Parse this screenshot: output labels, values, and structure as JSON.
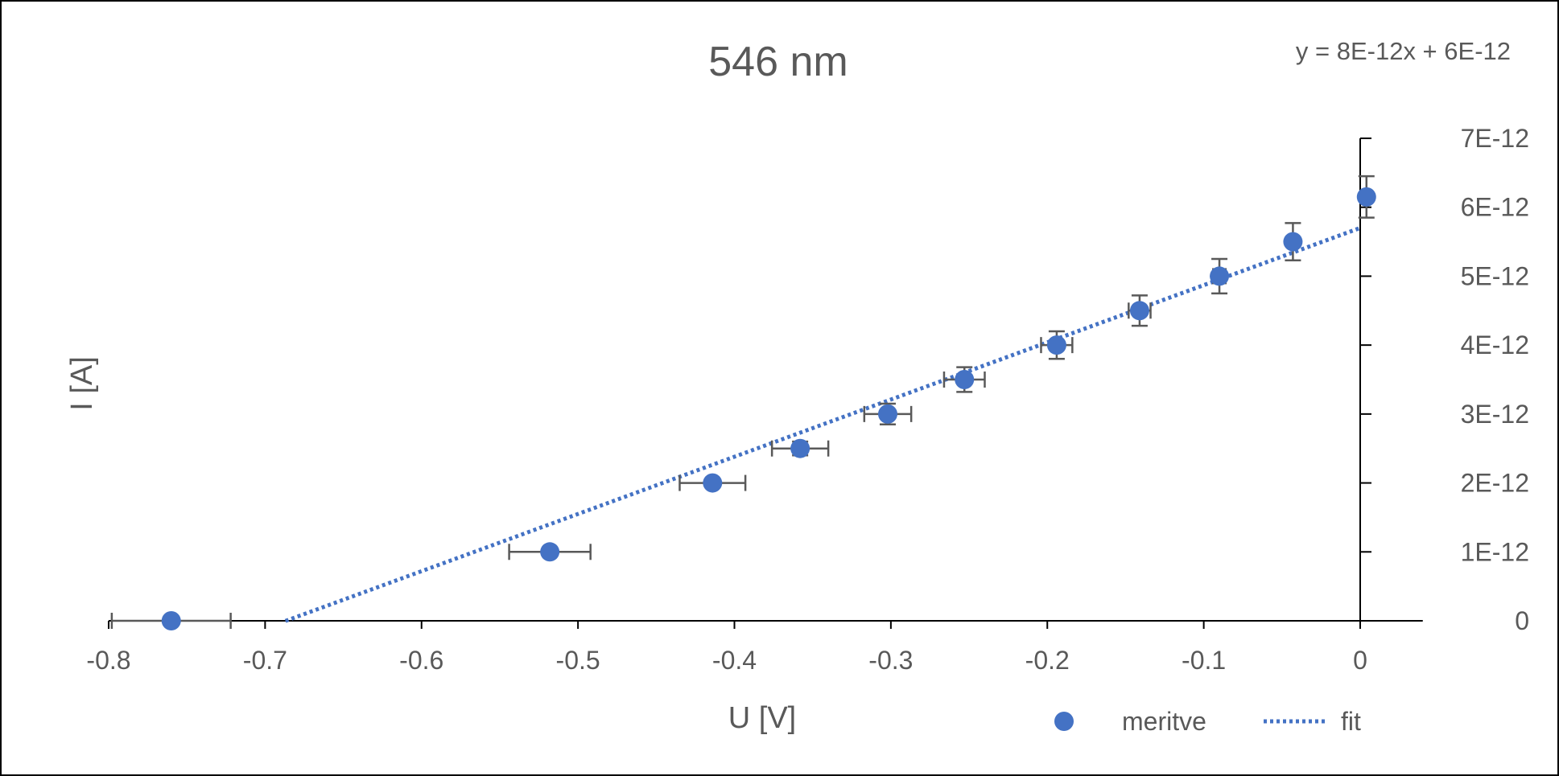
{
  "chart_data": {
    "type": "scatter",
    "title": "546 nm",
    "xlabel": "U [V]",
    "ylabel": "I [A]",
    "equation": "y = 8E-12x + 6E-12",
    "xlim": [
      -0.8,
      0.04
    ],
    "ylim": [
      0,
      7e-12
    ],
    "x_ticks": [
      -0.8,
      -0.7,
      -0.6,
      -0.5,
      -0.4,
      -0.3,
      -0.2,
      -0.1,
      0
    ],
    "x_tick_labels": [
      "-0.8",
      "-0.7",
      "-0.6",
      "-0.5",
      "-0.4",
      "-0.3",
      "-0.2",
      "-0.1",
      "0"
    ],
    "y_ticks": [
      0,
      1e-12,
      2e-12,
      3e-12,
      4e-12,
      5e-12,
      6e-12,
      7e-12
    ],
    "y_tick_labels": [
      "0",
      "1E-12",
      "2E-12",
      "3E-12",
      "4E-12",
      "5E-12",
      "6E-12",
      "7E-12"
    ],
    "y_axis_position": "right, crossing x at 0",
    "grid": false,
    "legend": {
      "position": "bottom-right",
      "entries": [
        {
          "label": "meritve",
          "marker": "circle"
        },
        {
          "label": "fit",
          "marker": "dotted-line"
        }
      ]
    },
    "series": [
      {
        "name": "meritve",
        "color": "#4472C4",
        "points": [
          {
            "x": -0.76,
            "y": 0,
            "xerr": 0.038,
            "yerr": 0
          },
          {
            "x": -0.518,
            "y": 1e-12,
            "xerr": 0.026,
            "yerr": 0
          },
          {
            "x": -0.414,
            "y": 2e-12,
            "xerr": 0.021,
            "yerr": 5e-14
          },
          {
            "x": -0.358,
            "y": 2.5e-12,
            "xerr": 0.018,
            "yerr": 1e-13
          },
          {
            "x": -0.302,
            "y": 3e-12,
            "xerr": 0.015,
            "yerr": 1.5e-13
          },
          {
            "x": -0.253,
            "y": 3.5e-12,
            "xerr": 0.013,
            "yerr": 1.8e-13
          },
          {
            "x": -0.194,
            "y": 4e-12,
            "xerr": 0.01,
            "yerr": 2e-13
          },
          {
            "x": -0.141,
            "y": 4.5e-12,
            "xerr": 0.007,
            "yerr": 2.2e-13
          },
          {
            "x": -0.09,
            "y": 5e-12,
            "xerr": 0.004,
            "yerr": 2.5e-13
          },
          {
            "x": -0.043,
            "y": 5.5e-12,
            "xerr": 0.002,
            "yerr": 2.7e-13
          },
          {
            "x": 0.004,
            "y": 6.15e-12,
            "xerr": 0.001,
            "yerr": 3e-13
          }
        ]
      },
      {
        "name": "fit",
        "color": "#4472C4",
        "line_style": "dotted",
        "slope": 8.3e-12,
        "intercept": 5.7e-12,
        "x_range": [
          -0.687,
          0
        ]
      }
    ]
  }
}
